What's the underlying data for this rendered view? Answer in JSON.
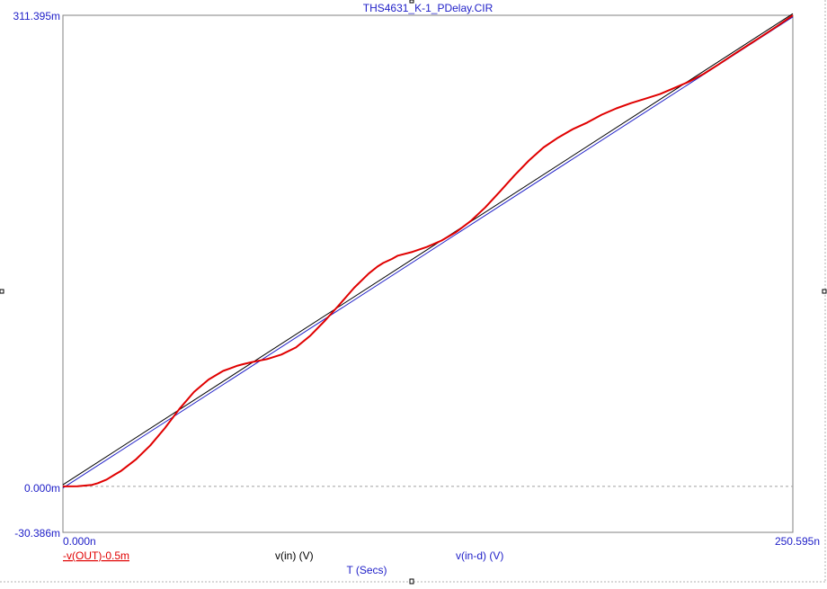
{
  "title": "THS4631_K-1_PDelay.CIR",
  "chart_data": {
    "type": "line",
    "title": "THS4631_K-1_PDelay.CIR",
    "xlabel": "T (Secs)",
    "ylabel": "",
    "x_unit": "n",
    "y_unit": "m",
    "xlim": [
      0,
      250.595
    ],
    "ylim": [
      -30.386,
      311.395
    ],
    "x_tick_labels": [
      "0.000n",
      "250.595n"
    ],
    "y_tick_labels": [
      "311.395m",
      "0.000m",
      "-30.386m"
    ],
    "zero_line": true,
    "grid": false,
    "legend_placement": "bottom",
    "series": [
      {
        "name": "v(in) (V)",
        "color": "#000000",
        "x": [
          0,
          250.595
        ],
        "y": [
          0,
          311.395
        ]
      },
      {
        "name": "v(in-d) (V)",
        "color": "#2020c8",
        "x": [
          0,
          250.595
        ],
        "y": [
          0,
          311.395
        ]
      },
      {
        "name": "-v(OUT)-0.5m",
        "color": "#e00000",
        "x": [
          0,
          5,
          10,
          12,
          15,
          18,
          20,
          25,
          30,
          35,
          40,
          45,
          50,
          55,
          60,
          62,
          65,
          68,
          70,
          75,
          80,
          85,
          90,
          95,
          100,
          105,
          108,
          110,
          113,
          115,
          120,
          125,
          130,
          135,
          140,
          145,
          150,
          155,
          160,
          165,
          170,
          175,
          180,
          185,
          190,
          195,
          200,
          205,
          210,
          215,
          220,
          225,
          230,
          235,
          240,
          245,
          250.595
        ],
        "y": [
          0,
          0.1,
          1.0,
          2.1,
          4.5,
          8.0,
          10.3,
          17.7,
          27.1,
          38.5,
          51.2,
          62.4,
          70.6,
          76.3,
          79.8,
          80.8,
          82.2,
          83.3,
          84.1,
          87.1,
          91.8,
          99.7,
          109.6,
          120.3,
          131.3,
          140.7,
          145.3,
          147.7,
          150.4,
          152.5,
          155.0,
          158.3,
          162.5,
          168.1,
          175.4,
          184.4,
          194.8,
          205.5,
          215.4,
          224.0,
          230.5,
          236.1,
          240.5,
          245.7,
          249.9,
          253.3,
          256.3,
          259.3,
          263.4,
          267.6,
          272.7,
          278.8,
          285.2,
          291.4,
          297.6,
          303.9,
          311.395
        ]
      }
    ]
  }
}
